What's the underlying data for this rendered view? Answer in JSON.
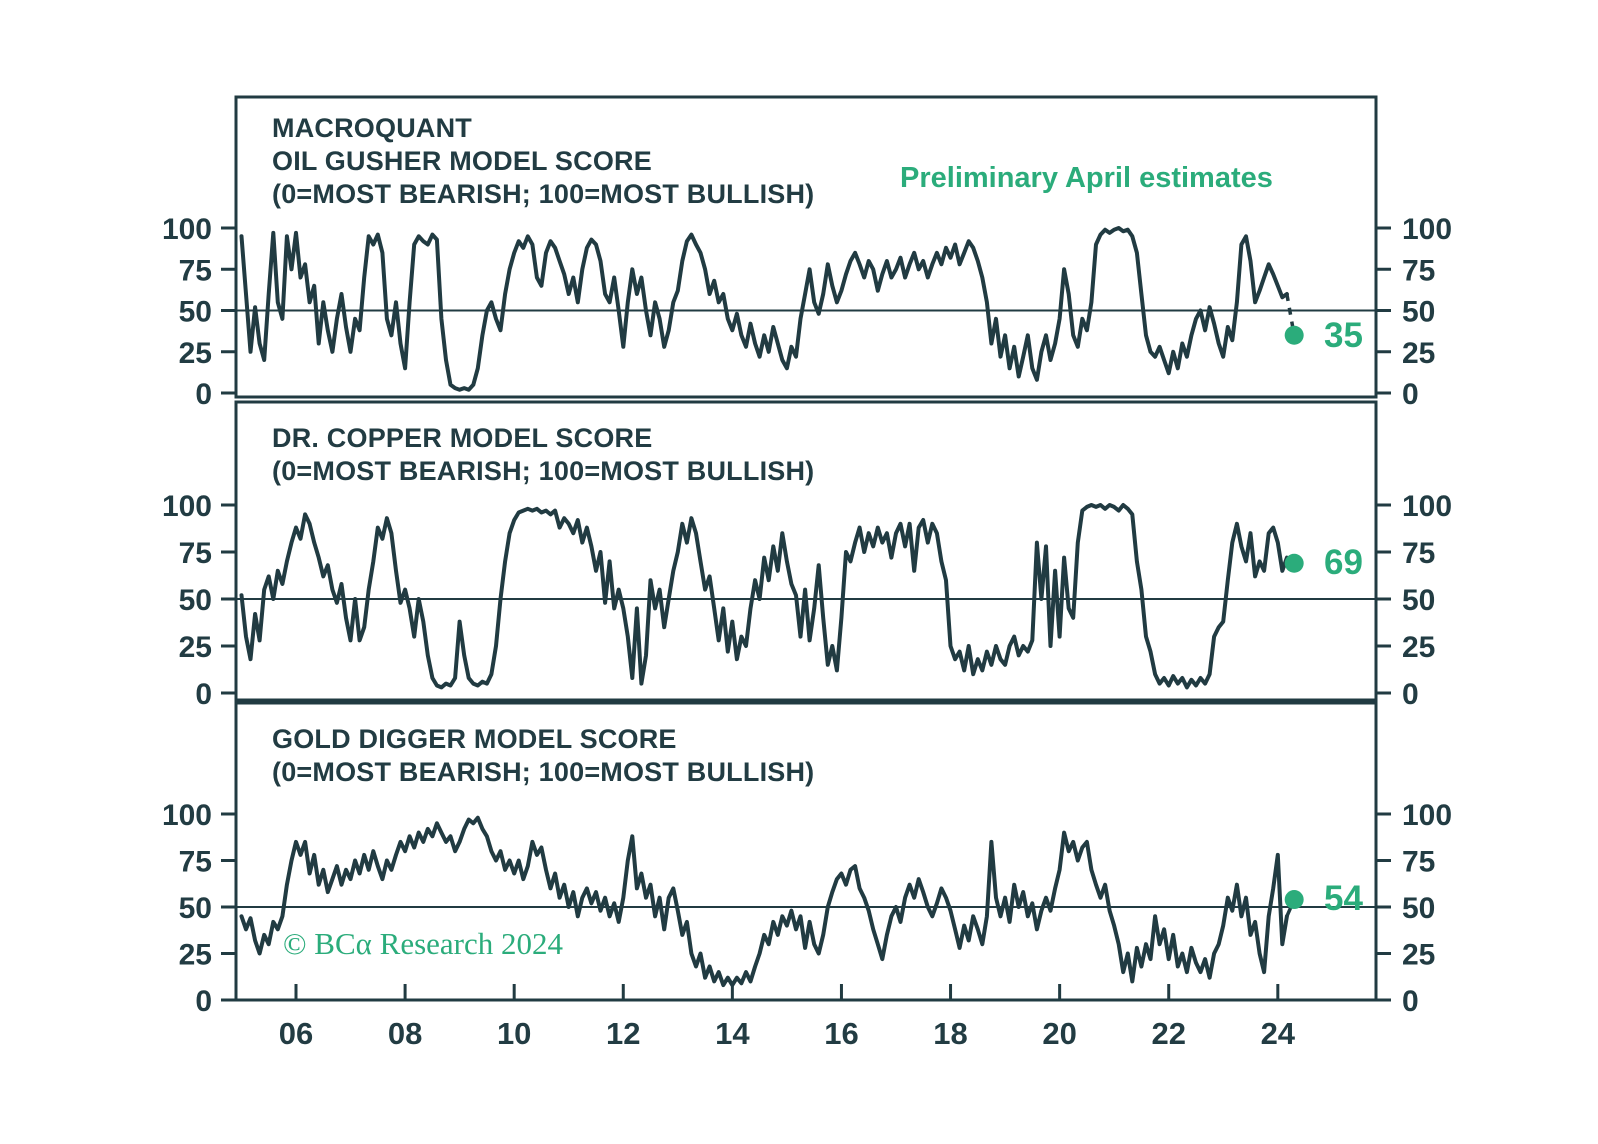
{
  "annotation": "Preliminary April estimates",
  "copyright": "© BCα Research 2024",
  "colors": {
    "line": "#213b42",
    "text": "#223c43",
    "accent_green": "#2bac7b",
    "background": "#ffffff"
  },
  "axes": {
    "xlim": [
      2004.9,
      2025.8
    ],
    "ylim": [
      0,
      100
    ],
    "yticks": [
      0,
      25,
      50,
      75,
      100
    ],
    "xticks": {
      "years": [
        2006,
        2008,
        2010,
        2012,
        2014,
        2016,
        2018,
        2020,
        2022,
        2024
      ],
      "labels": [
        "06",
        "08",
        "10",
        "12",
        "14",
        "16",
        "18",
        "20",
        "22",
        "24"
      ]
    },
    "midline_value": 50
  },
  "chart_data": [
    {
      "type": "line",
      "title_lines": [
        "MACROQUANT",
        "OIL GUSHER MODEL SCORE",
        "(0=MOST BEARISH; 100=MOST BULLISH)"
      ],
      "series_name": "Oil Gusher model score",
      "x_start": 2005.0,
      "x_step": 0.08333,
      "values": [
        95,
        60,
        25,
        52,
        30,
        20,
        60,
        97,
        55,
        45,
        95,
        75,
        97,
        70,
        78,
        55,
        65,
        30,
        55,
        38,
        25,
        45,
        60,
        40,
        25,
        45,
        38,
        70,
        95,
        90,
        96,
        85,
        45,
        35,
        55,
        30,
        15,
        55,
        90,
        95,
        92,
        90,
        96,
        93,
        45,
        20,
        5,
        3,
        2,
        3,
        2,
        5,
        15,
        35,
        50,
        55,
        45,
        38,
        60,
        75,
        85,
        92,
        88,
        95,
        90,
        70,
        65,
        85,
        92,
        88,
        80,
        72,
        60,
        70,
        55,
        75,
        88,
        93,
        90,
        80,
        60,
        55,
        70,
        50,
        28,
        55,
        75,
        60,
        70,
        50,
        35,
        55,
        45,
        28,
        38,
        55,
        62,
        80,
        92,
        96,
        90,
        85,
        75,
        60,
        68,
        55,
        60,
        45,
        38,
        48,
        35,
        28,
        42,
        30,
        22,
        35,
        25,
        40,
        30,
        20,
        15,
        28,
        22,
        45,
        60,
        75,
        55,
        48,
        60,
        78,
        65,
        55,
        62,
        72,
        80,
        85,
        78,
        70,
        80,
        75,
        62,
        72,
        80,
        70,
        75,
        82,
        70,
        78,
        85,
        75,
        80,
        70,
        78,
        85,
        78,
        88,
        82,
        90,
        78,
        85,
        92,
        88,
        80,
        70,
        55,
        30,
        45,
        22,
        35,
        15,
        28,
        10,
        22,
        35,
        15,
        8,
        25,
        35,
        20,
        30,
        45,
        75,
        60,
        35,
        28,
        45,
        38,
        55,
        90,
        96,
        99,
        97,
        99,
        100,
        98,
        99,
        95,
        85,
        60,
        35,
        25,
        22,
        28,
        20,
        12,
        25,
        15,
        30,
        22,
        35,
        45,
        50,
        38,
        52,
        42,
        30,
        22,
        40,
        32,
        55,
        90,
        95,
        80,
        55,
        62,
        70,
        78,
        72,
        65,
        58,
        60
      ],
      "estimate": {
        "x": 2024.3,
        "value": 35,
        "label": "35",
        "connector": "dashed"
      }
    },
    {
      "type": "line",
      "title_lines": [
        "DR. COPPER MODEL SCORE",
        "(0=MOST BEARISH; 100=MOST BULLISH)"
      ],
      "series_name": "Dr. Copper model score",
      "x_start": 2005.0,
      "x_step": 0.08333,
      "values": [
        52,
        30,
        18,
        42,
        28,
        55,
        62,
        50,
        65,
        58,
        70,
        80,
        88,
        82,
        95,
        90,
        80,
        72,
        62,
        68,
        55,
        48,
        58,
        40,
        28,
        50,
        28,
        35,
        55,
        70,
        88,
        82,
        93,
        85,
        65,
        48,
        55,
        45,
        30,
        50,
        38,
        20,
        8,
        4,
        3,
        5,
        4,
        8,
        38,
        20,
        8,
        5,
        4,
        6,
        5,
        10,
        25,
        50,
        70,
        85,
        92,
        96,
        97,
        98,
        97,
        98,
        96,
        97,
        95,
        97,
        88,
        93,
        90,
        85,
        92,
        80,
        88,
        78,
        65,
        75,
        48,
        70,
        45,
        55,
        45,
        30,
        8,
        45,
        5,
        20,
        60,
        45,
        55,
        35,
        50,
        65,
        75,
        90,
        80,
        93,
        85,
        70,
        55,
        62,
        45,
        28,
        45,
        22,
        38,
        18,
        30,
        25,
        45,
        60,
        50,
        72,
        60,
        78,
        65,
        85,
        70,
        58,
        52,
        30,
        55,
        28,
        45,
        68,
        40,
        15,
        25,
        12,
        40,
        75,
        70,
        80,
        88,
        75,
        85,
        78,
        88,
        80,
        85,
        72,
        85,
        90,
        78,
        90,
        65,
        88,
        92,
        80,
        90,
        85,
        70,
        60,
        25,
        18,
        22,
        12,
        25,
        10,
        18,
        12,
        22,
        15,
        25,
        18,
        15,
        25,
        30,
        20,
        25,
        22,
        28,
        80,
        50,
        78,
        25,
        65,
        30,
        72,
        45,
        40,
        80,
        97,
        99,
        100,
        99,
        100,
        98,
        100,
        99,
        97,
        100,
        98,
        95,
        70,
        55,
        30,
        22,
        10,
        5,
        8,
        4,
        9,
        5,
        8,
        3,
        7,
        4,
        8,
        5,
        10,
        30,
        35,
        38,
        60,
        80,
        90,
        78,
        70,
        85,
        62,
        70,
        65,
        85,
        88,
        80,
        65,
        72
      ],
      "estimate": {
        "x": 2024.3,
        "value": 69,
        "label": "69",
        "connector": "solid"
      }
    },
    {
      "type": "line",
      "title_lines": [
        "GOLD DIGGER MODEL SCORE",
        "(0=MOST BEARISH; 100=MOST BULLISH)"
      ],
      "series_name": "Gold Digger model score",
      "x_start": 2005.0,
      "x_step": 0.08333,
      "values": [
        45,
        38,
        44,
        32,
        25,
        35,
        30,
        42,
        38,
        45,
        62,
        75,
        85,
        78,
        85,
        68,
        78,
        62,
        70,
        58,
        65,
        72,
        62,
        70,
        65,
        75,
        68,
        78,
        70,
        80,
        72,
        65,
        75,
        70,
        78,
        85,
        80,
        88,
        82,
        90,
        85,
        92,
        88,
        95,
        90,
        85,
        88,
        80,
        85,
        92,
        97,
        95,
        98,
        92,
        88,
        80,
        75,
        80,
        70,
        75,
        68,
        75,
        65,
        72,
        85,
        78,
        82,
        70,
        60,
        68,
        55,
        62,
        50,
        58,
        45,
        55,
        60,
        52,
        58,
        48,
        55,
        45,
        52,
        42,
        55,
        75,
        88,
        60,
        68,
        55,
        62,
        45,
        55,
        38,
        55,
        60,
        48,
        35,
        42,
        25,
        18,
        25,
        12,
        18,
        10,
        15,
        8,
        12,
        8,
        12,
        9,
        15,
        10,
        18,
        25,
        35,
        30,
        42,
        35,
        45,
        40,
        48,
        38,
        45,
        28,
        42,
        30,
        25,
        35,
        50,
        58,
        65,
        68,
        62,
        70,
        72,
        60,
        55,
        48,
        38,
        30,
        22,
        35,
        45,
        50,
        42,
        55,
        62,
        55,
        65,
        58,
        50,
        45,
        52,
        60,
        55,
        48,
        38,
        28,
        40,
        32,
        45,
        38,
        30,
        45,
        85,
        55,
        45,
        55,
        42,
        62,
        50,
        58,
        45,
        52,
        38,
        48,
        55,
        48,
        60,
        70,
        90,
        80,
        85,
        75,
        82,
        85,
        70,
        62,
        55,
        62,
        48,
        40,
        30,
        15,
        25,
        10,
        28,
        18,
        30,
        22,
        45,
        30,
        38,
        22,
        35,
        18,
        25,
        15,
        28,
        20,
        15,
        22,
        12,
        25,
        30,
        40,
        55,
        48,
        62,
        45,
        55,
        35,
        42,
        25,
        15,
        45,
        60,
        78,
        30,
        45
      ],
      "estimate": {
        "x": 2024.3,
        "value": 54,
        "label": "54",
        "connector": "solid"
      }
    }
  ]
}
